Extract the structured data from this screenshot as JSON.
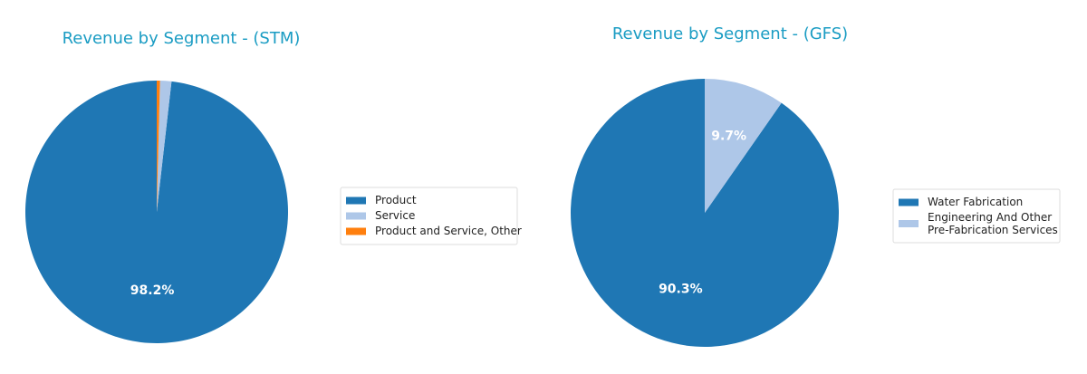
{
  "chart_data": [
    {
      "type": "pie",
      "title": "Revenue by Segment - (STM)",
      "categories": [
        "Product",
        "Service",
        "Product and Service, Other"
      ],
      "values": [
        98.2,
        1.4,
        0.4
      ],
      "value_labels": [
        "98.2%",
        null,
        null
      ],
      "colors": [
        "#1f77b4",
        "#aec7e8",
        "#ff7f0e"
      ]
    },
    {
      "type": "pie",
      "title": "Revenue by Segment - (GFS)",
      "categories": [
        "Water Fabrication",
        "Engineering And Other\nPre-Fabrication Services"
      ],
      "values": [
        90.3,
        9.7
      ],
      "value_labels": [
        "90.3%",
        "9.7%"
      ],
      "colors": [
        "#1f77b4",
        "#aec7e8"
      ]
    }
  ]
}
